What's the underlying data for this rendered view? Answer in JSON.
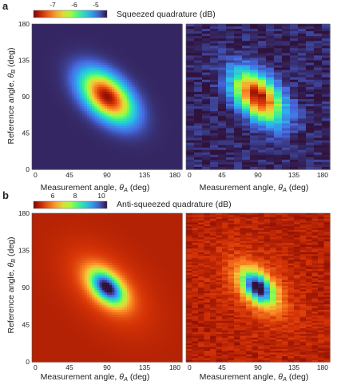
{
  "figure": {
    "panels": [
      {
        "letter": "a",
        "colorbar": {
          "title": "Squeezed quadrature (dB)",
          "ticks": [
            "-7",
            "-6",
            "-5"
          ],
          "range": [
            -8,
            -4.6
          ]
        },
        "subplots": [
          {
            "xlabel_text": "Measurement angle, ",
            "xlabel_sym": "θ",
            "xlabel_sub": "A",
            "xlabel_unit": " (deg)",
            "ylabel_text": "Reference angle, ",
            "ylabel_sym": "θ",
            "ylabel_sub": "B",
            "ylabel_unit": " (deg)",
            "xticks": [
              "0",
              "45",
              "90",
              "135",
              "180"
            ],
            "yticks": [
              "0",
              "45",
              "90",
              "135",
              "180"
            ]
          },
          {
            "xlabel_text": "Measurement angle, ",
            "xlabel_sym": "θ",
            "xlabel_sub": "A",
            "xlabel_unit": " (deg)",
            "xticks": [
              "0",
              "45",
              "90",
              "135",
              "180"
            ]
          }
        ]
      },
      {
        "letter": "b",
        "colorbar": {
          "title": "Anti-squeezed quadrature (dB)",
          "ticks": [
            "6",
            "8",
            "10"
          ],
          "range": [
            4.5,
            11
          ]
        },
        "subplots": [
          {
            "xlabel_text": "Measurement angle, ",
            "xlabel_sym": "θ",
            "xlabel_sub": "A",
            "xlabel_unit": " (deg)",
            "ylabel_text": "Reference angle, ",
            "ylabel_sym": "θ",
            "ylabel_sub": "B",
            "ylabel_unit": " (deg)",
            "xticks": [
              "0",
              "45",
              "90",
              "135",
              "180"
            ],
            "yticks": [
              "0",
              "45",
              "90",
              "135",
              "180"
            ]
          },
          {
            "xlabel_text": "Measurement angle, ",
            "xlabel_sym": "θ",
            "xlabel_sub": "A",
            "xlabel_unit": " (deg)",
            "xticks": [
              "0",
              "45",
              "90",
              "135",
              "180"
            ]
          }
        ]
      }
    ]
  },
  "chart_data": [
    {
      "type": "heatmap",
      "panel": "a",
      "variant": "theory",
      "x_range": [
        0,
        180
      ],
      "y_range": [
        0,
        180
      ],
      "z_range": [
        -8,
        -4.6
      ],
      "minimum": {
        "x": 90,
        "y": 90,
        "z": -7.9
      },
      "orientation": "anti-diagonal elongation"
    },
    {
      "type": "heatmap",
      "panel": "a",
      "variant": "measured",
      "x_range": [
        0,
        180
      ],
      "y_range": [
        0,
        180
      ],
      "z_range": [
        -8,
        -4.6
      ],
      "minimum": {
        "x": 90,
        "y": 90,
        "z": -7.9
      },
      "orientation": "anti-diagonal elongation"
    },
    {
      "type": "heatmap",
      "panel": "b",
      "variant": "theory",
      "x_range": [
        0,
        180
      ],
      "y_range": [
        0,
        180
      ],
      "z_range": [
        4.5,
        11
      ],
      "maximum": {
        "x": 90,
        "y": 90,
        "z": 10.8
      },
      "orientation": "anti-diagonal elongation"
    },
    {
      "type": "heatmap",
      "panel": "b",
      "variant": "measured",
      "x_range": [
        0,
        180
      ],
      "y_range": [
        0,
        180
      ],
      "z_range": [
        4.5,
        11
      ],
      "maximum": {
        "x": 90,
        "y": 90,
        "z": 10.8
      },
      "orientation": "anti-diagonal elongation"
    }
  ]
}
